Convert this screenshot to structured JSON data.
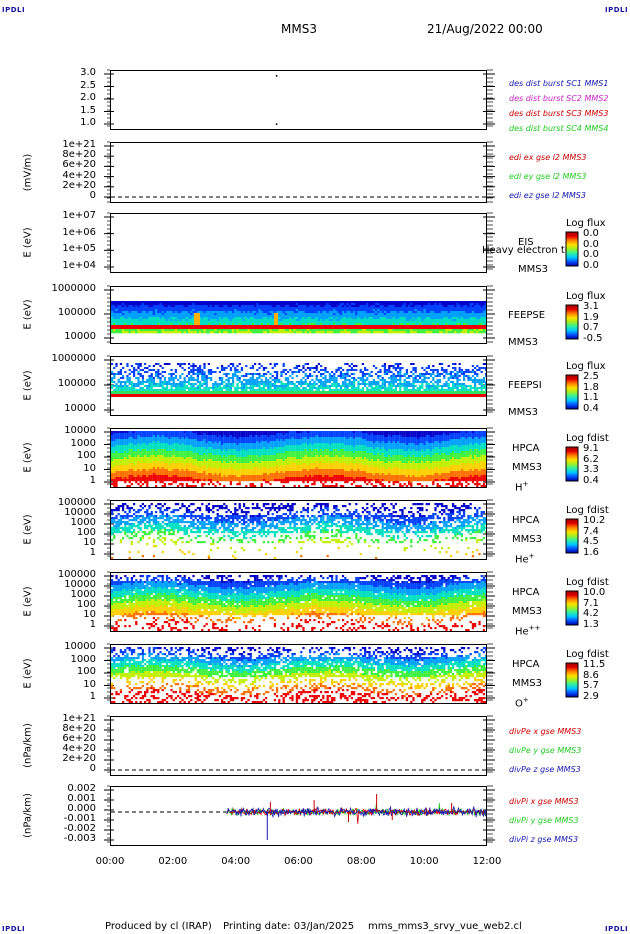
{
  "header": {
    "corner_label": "IPDLI",
    "spacecraft": "MMS3",
    "datetime": "21/Aug/2022 00:00"
  },
  "footer": {
    "produced_by": "Produced by cl (IRAP)",
    "printing_date": "Printing date: 03/Jan/2025",
    "filename": "mms_mms3_srvy_vue_web2.cl"
  },
  "colors": {
    "red": "#cc0000",
    "green": "#22cc22",
    "blue": "#1818b0",
    "magenta": "#cc22cc",
    "spectro_map": [
      "#0000c8",
      "#0040ff",
      "#00a0ff",
      "#00e0c0",
      "#40f040",
      "#c0f000",
      "#ffd000",
      "#ff7000",
      "#ee0000"
    ]
  },
  "chart_data": [
    {
      "type": "scatter",
      "title": "",
      "ylabel": "",
      "yticks": [
        "3.0",
        "2.5",
        "2.0",
        "1.5",
        "1.0"
      ],
      "ylim": [
        0.8,
        3.2
      ],
      "legend": [
        {
          "text": "des dist burst SC1 MMS1",
          "color": "#1818b0"
        },
        {
          "text": "des dist burst SC2 MMS2",
          "color": "#cc22cc"
        },
        {
          "text": "des dist burst SC3 MMS3",
          "color": "#cc0000"
        },
        {
          "text": "des dist burst SC4 MMS4",
          "color": "#22cc22"
        }
      ],
      "points": [
        {
          "x": 5.3,
          "y": 3.0
        },
        {
          "x": 5.3,
          "y": 1.0
        }
      ]
    },
    {
      "type": "line",
      "ylabel": "(mV/m)",
      "yticks": [
        "1e+21",
        "8e+20",
        "6e+20",
        "4e+20",
        "2e+20",
        "0"
      ],
      "legend": [
        {
          "text": "edi ex gse l2 MMS3",
          "color": "#cc0000"
        },
        {
          "text": "edi ey gse l2 MMS3",
          "color": "#22cc22"
        },
        {
          "text": "edi ez gse l2 MMS3",
          "color": "#1818b0"
        }
      ]
    },
    {
      "type": "heatmap",
      "ylabel": "E (eV)",
      "yticks": [
        "1e+07",
        "1e+06",
        "1e+05",
        "1e+04"
      ],
      "instrument": [
        "EIS",
        "MMS3"
      ],
      "overlay_text": "Heavy electron to",
      "colorbar": {
        "title": "Log flux",
        "values": [
          "0.0",
          "0.0",
          "0.0",
          "0.0"
        ]
      }
    },
    {
      "type": "heatmap",
      "ylabel": "E (eV)",
      "yticks": [
        "1000000",
        "100000",
        "10000"
      ],
      "instrument": [
        "FEEPSE",
        "MMS3"
      ],
      "colorbar": {
        "title": "Log flux",
        "values": [
          "3.1",
          "1.9",
          "0.7",
          "-0.5"
        ]
      }
    },
    {
      "type": "heatmap",
      "ylabel": "E (eV)",
      "yticks": [
        "1000000",
        "100000",
        "10000"
      ],
      "instrument": [
        "FEEPSI",
        "MMS3"
      ],
      "colorbar": {
        "title": "Log flux",
        "values": [
          "2.5",
          "1.8",
          "1.1",
          "0.4"
        ]
      }
    },
    {
      "type": "heatmap",
      "ylabel": "E (eV)",
      "yticks": [
        "10000",
        "1000",
        "100",
        "10",
        "1"
      ],
      "instrument": [
        "HPCA",
        "MMS3"
      ],
      "species": "H",
      "charge": "+",
      "colorbar": {
        "title": "Log fdist",
        "values": [
          "9.1",
          "6.2",
          "3.3",
          "0.4"
        ]
      }
    },
    {
      "type": "heatmap",
      "ylabel": "E (eV)",
      "yticks": [
        "100000",
        "10000",
        "1000",
        "100",
        "10",
        "1"
      ],
      "instrument": [
        "HPCA",
        "MMS3"
      ],
      "species": "He",
      "charge": "+",
      "colorbar": {
        "title": "Log fdist",
        "values": [
          "10.2",
          "7.4",
          "4.5",
          "1.6"
        ]
      }
    },
    {
      "type": "heatmap",
      "ylabel": "E (eV)",
      "yticks": [
        "100000",
        "10000",
        "1000",
        "100",
        "10",
        "1"
      ],
      "instrument": [
        "HPCA",
        "MMS3"
      ],
      "species": "He",
      "charge": "++",
      "colorbar": {
        "title": "Log fdist",
        "values": [
          "10.0",
          "7.1",
          "4.2",
          "1.3"
        ]
      }
    },
    {
      "type": "heatmap",
      "ylabel": "E (eV)",
      "yticks": [
        "10000",
        "1000",
        "100",
        "10",
        "1"
      ],
      "instrument": [
        "HPCA",
        "MMS3"
      ],
      "species": "O",
      "charge": "+",
      "colorbar": {
        "title": "Log fdist",
        "values": [
          "11.5",
          "8.6",
          "5.7",
          "2.9"
        ]
      }
    },
    {
      "type": "line",
      "ylabel": "(nPa/km)",
      "yticks": [
        "1e+21",
        "8e+20",
        "6e+20",
        "4e+20",
        "2e+20",
        "0"
      ],
      "legend": [
        {
          "text": "divPe x gse MMS3",
          "color": "#cc0000"
        },
        {
          "text": "divPe y gse MMS3",
          "color": "#22cc22"
        },
        {
          "text": "divPe z gse MMS3",
          "color": "#1818b0"
        }
      ]
    },
    {
      "type": "line",
      "ylabel": "(nPa/km)",
      "yticks": [
        "0.002",
        "0.001",
        "0.000",
        "-0.001",
        "-0.002",
        "-0.003"
      ],
      "ylim": [
        -0.0033,
        0.0025
      ],
      "legend": [
        {
          "text": "divPi x gse MMS3",
          "color": "#cc0000"
        },
        {
          "text": "divPi y gse MMS3",
          "color": "#22cc22"
        },
        {
          "text": "divPi z gse MMS3",
          "color": "#1818b0"
        }
      ],
      "data_range_hours": [
        3.7,
        12.0
      ]
    }
  ],
  "xaxis": {
    "ticks": [
      "00:00",
      "02:00",
      "04:00",
      "06:00",
      "08:00",
      "10:00",
      "12:00"
    ],
    "range_hours": [
      0,
      12
    ]
  }
}
